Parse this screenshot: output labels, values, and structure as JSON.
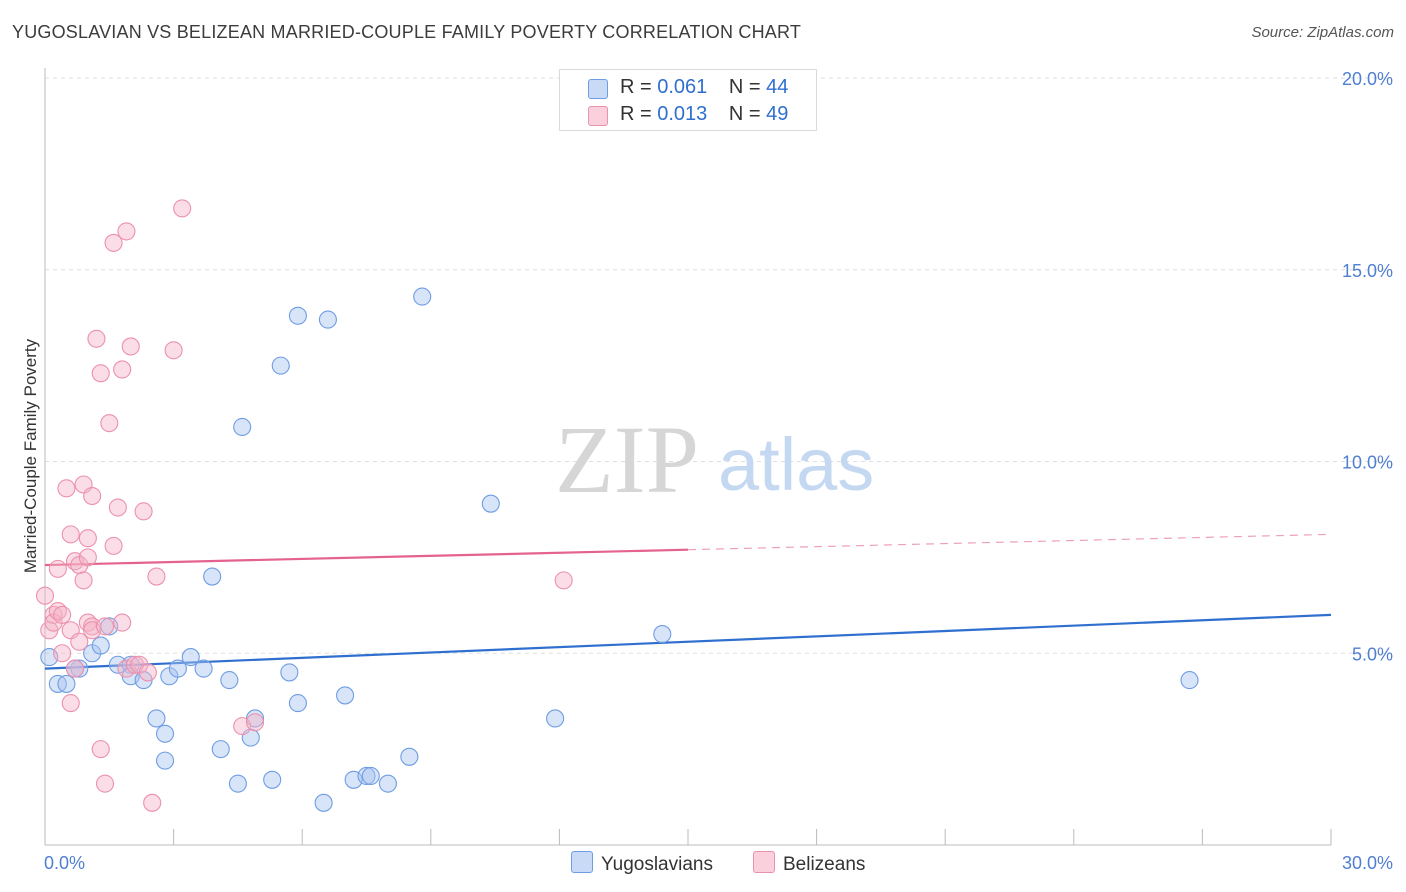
{
  "title": "YUGOSLAVIAN VS BELIZEAN MARRIED-COUPLE FAMILY POVERTY CORRELATION CHART",
  "source": "Source: ZipAtlas.com",
  "watermark": {
    "zip": "ZIP",
    "atlas": "atlas"
  },
  "legend": {
    "rows": [
      {
        "r_label": "R = ",
        "r_value": "0.061",
        "n_label": "N = ",
        "n_value": "44",
        "color": "#a9c4f0"
      },
      {
        "r_label": "R = ",
        "r_value": "0.013",
        "n_label": "N = ",
        "n_value": "49",
        "color": "#f5b4c8"
      }
    ]
  },
  "bottom_legend": [
    {
      "label": "Yugoslavians",
      "color": "#a9c4f0"
    },
    {
      "label": "Belizeans",
      "color": "#f5b4c8"
    }
  ],
  "chart_data": {
    "type": "scatter",
    "title": "YUGOSLAVIAN VS BELIZEAN MARRIED-COUPLE FAMILY POVERTY CORRELATION CHART",
    "xlabel": "",
    "ylabel": "Married-Couple Family Poverty",
    "xlim": [
      0,
      30
    ],
    "ylim": [
      0,
      20
    ],
    "x_tick_labels": [
      "0.0%",
      "30.0%"
    ],
    "y_ticks": [
      5,
      10,
      15,
      20
    ],
    "y_tick_labels": [
      "5.0%",
      "10.0%",
      "15.0%",
      "20.0%"
    ],
    "grid": true,
    "series": [
      {
        "name": "Yugoslavians",
        "color": "#6f9de4",
        "fill": "#a9c4f0",
        "line_color": "#2f6fcf",
        "trend": {
          "x": [
            0,
            30
          ],
          "y": [
            4.6,
            6.0
          ],
          "solid_until": 30
        },
        "points": [
          [
            0.1,
            4.9
          ],
          [
            0.3,
            4.2
          ],
          [
            0.5,
            4.2
          ],
          [
            0.8,
            4.6
          ],
          [
            0.7,
            4.6
          ],
          [
            1.1,
            5.0
          ],
          [
            1.3,
            5.2
          ],
          [
            1.5,
            5.7
          ],
          [
            1.7,
            4.7
          ],
          [
            2.0,
            4.7
          ],
          [
            2.0,
            4.4
          ],
          [
            2.3,
            4.3
          ],
          [
            2.6,
            3.3
          ],
          [
            2.8,
            2.9
          ],
          [
            2.9,
            4.4
          ],
          [
            2.8,
            2.2
          ],
          [
            3.1,
            4.6
          ],
          [
            3.4,
            4.9
          ],
          [
            3.7,
            4.6
          ],
          [
            3.9,
            7.0
          ],
          [
            4.1,
            2.5
          ],
          [
            4.3,
            4.3
          ],
          [
            4.5,
            1.6
          ],
          [
            4.6,
            10.9
          ],
          [
            4.8,
            2.8
          ],
          [
            4.9,
            3.3
          ],
          [
            5.3,
            1.7
          ],
          [
            5.5,
            12.5
          ],
          [
            5.7,
            4.5
          ],
          [
            5.9,
            3.7
          ],
          [
            5.9,
            13.8
          ],
          [
            6.5,
            1.1
          ],
          [
            6.6,
            13.7
          ],
          [
            7.0,
            3.9
          ],
          [
            7.2,
            1.7
          ],
          [
            7.5,
            1.8
          ],
          [
            7.6,
            1.8
          ],
          [
            8.0,
            1.6
          ],
          [
            8.5,
            2.3
          ],
          [
            8.8,
            14.3
          ],
          [
            10.4,
            8.9
          ],
          [
            11.9,
            3.3
          ],
          [
            14.4,
            5.5
          ],
          [
            26.7,
            4.3
          ]
        ]
      },
      {
        "name": "Belizeans",
        "color": "#ec91ad",
        "fill": "#f5b4c8",
        "line_color": "#e4628d",
        "trend": {
          "x": [
            0,
            30
          ],
          "y": [
            7.3,
            8.1
          ],
          "solid_until": 15
        },
        "points": [
          [
            0.0,
            6.5
          ],
          [
            0.1,
            5.6
          ],
          [
            0.2,
            6.0
          ],
          [
            0.2,
            5.8
          ],
          [
            0.3,
            7.2
          ],
          [
            0.3,
            6.1
          ],
          [
            0.4,
            5.0
          ],
          [
            0.4,
            6.0
          ],
          [
            0.5,
            9.3
          ],
          [
            0.6,
            5.6
          ],
          [
            0.6,
            8.1
          ],
          [
            0.6,
            3.7
          ],
          [
            0.7,
            7.4
          ],
          [
            0.7,
            4.6
          ],
          [
            0.8,
            7.3
          ],
          [
            0.8,
            5.3
          ],
          [
            0.9,
            9.4
          ],
          [
            0.9,
            6.9
          ],
          [
            1.0,
            8.0
          ],
          [
            1.0,
            7.5
          ],
          [
            1.0,
            5.8
          ],
          [
            1.1,
            5.7
          ],
          [
            1.1,
            5.6
          ],
          [
            1.1,
            9.1
          ],
          [
            1.2,
            13.2
          ],
          [
            1.3,
            12.3
          ],
          [
            1.3,
            2.5
          ],
          [
            1.4,
            5.7
          ],
          [
            1.4,
            1.6
          ],
          [
            1.5,
            11.0
          ],
          [
            1.6,
            7.8
          ],
          [
            1.6,
            15.7
          ],
          [
            1.7,
            8.8
          ],
          [
            1.8,
            12.4
          ],
          [
            1.8,
            5.8
          ],
          [
            1.9,
            16.0
          ],
          [
            1.9,
            4.6
          ],
          [
            2.0,
            13.0
          ],
          [
            2.1,
            4.7
          ],
          [
            2.2,
            4.7
          ],
          [
            2.3,
            8.7
          ],
          [
            2.4,
            4.5
          ],
          [
            2.5,
            1.1
          ],
          [
            2.6,
            7.0
          ],
          [
            3.0,
            12.9
          ],
          [
            3.2,
            16.6
          ],
          [
            4.6,
            3.1
          ],
          [
            4.9,
            3.2
          ],
          [
            12.1,
            6.9
          ]
        ]
      }
    ]
  }
}
